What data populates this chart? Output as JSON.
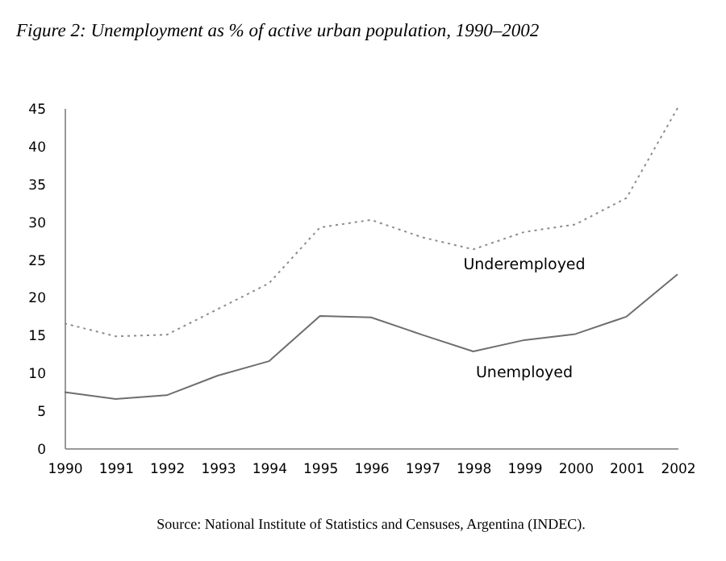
{
  "chart_data": {
    "type": "line",
    "title": "Figure 2: Unemployment as % of active urban population, 1990–2002",
    "categories": [
      "1990",
      "1991",
      "1992",
      "1993",
      "1994",
      "1995",
      "1996",
      "1997",
      "1998",
      "1999",
      "2000",
      "2001",
      "2002"
    ],
    "series": [
      {
        "name": "Underemployed",
        "color": "#8c8c8c",
        "line_style": "dotted",
        "values": [
          16.5,
          14.8,
          15.0,
          18.4,
          21.8,
          29.2,
          30.2,
          27.9,
          26.3,
          28.6,
          29.6,
          33.1,
          45.0
        ]
      },
      {
        "name": "Unemployed",
        "color": "#6e6e6e",
        "line_style": "solid",
        "values": [
          7.4,
          6.5,
          7.0,
          9.6,
          11.5,
          17.5,
          17.3,
          15.0,
          12.8,
          14.3,
          15.1,
          17.4,
          23.0
        ]
      }
    ],
    "ylim": [
      0,
      45
    ],
    "yticks": [
      0,
      5,
      10,
      15,
      20,
      25,
      30,
      35,
      40,
      45
    ],
    "grid": false,
    "legend": false,
    "marker": "none",
    "annotations": [
      "Source: National Institute of Statistics and Censuses, Argentina (INDEC)."
    ]
  }
}
